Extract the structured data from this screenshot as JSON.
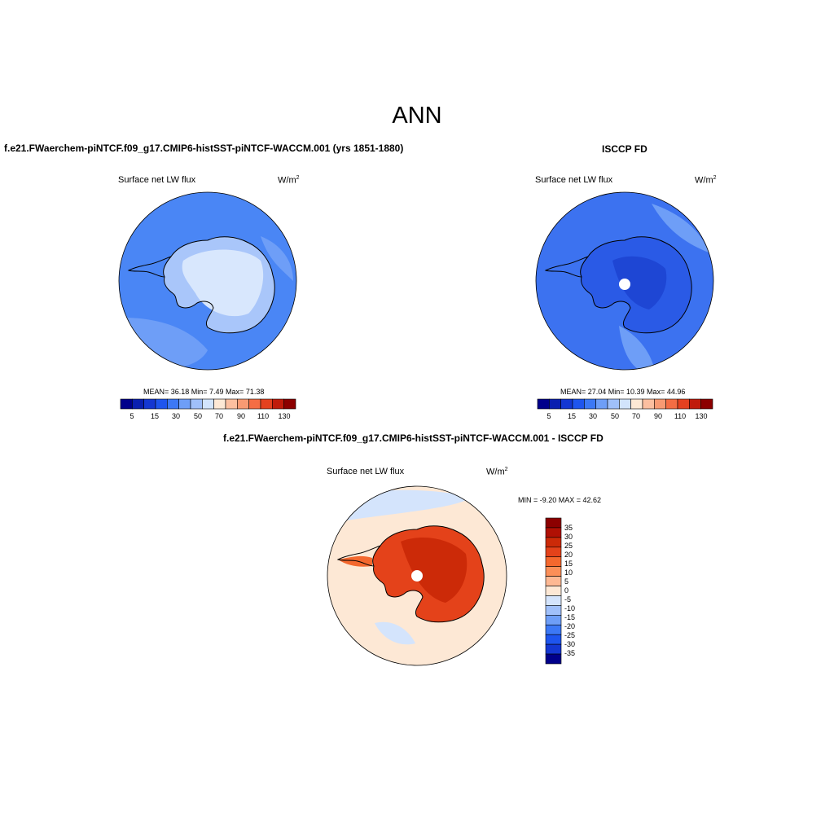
{
  "title": "ANN",
  "panels": [
    {
      "case_name": "f.e21.FWaerchem-piNTCF.f09_g17.CMIP6-histSST-piNTCF-WACCM.001 (yrs 1851-1880)",
      "variable": "Surface net LW flux",
      "units_base": "W/m",
      "units_exp": "2",
      "stats": "MEAN=  36.18  Min=   7.49  Max=  71.38",
      "colorbar_ticks": [
        "5",
        "15",
        "30",
        "50",
        "70",
        "90",
        "110",
        "130"
      ]
    },
    {
      "case_name": "ISCCP FD",
      "variable": "Surface net LW flux",
      "units_base": "W/m",
      "units_exp": "2",
      "stats": "MEAN=  27.04  Min=  10.39  Max=  44.96",
      "colorbar_ticks": [
        "5",
        "15",
        "30",
        "50",
        "70",
        "90",
        "110",
        "130"
      ]
    },
    {
      "case_name": "f.e21.FWaerchem-piNTCF.f09_g17.CMIP6-histSST-piNTCF-WACCM.001 - ISCCP FD",
      "variable": "Surface net LW flux",
      "units_base": "W/m",
      "units_exp": "2",
      "stats": "MIN =  -9.20 MAX =  42.62",
      "legend_labels": [
        "35",
        "30",
        "25",
        "20",
        "15",
        "10",
        "5",
        "0",
        "-5",
        "-10",
        "-15",
        "-20",
        "-25",
        "-30",
        "-35"
      ]
    }
  ],
  "colors": {
    "abs_colorbar": [
      "#00008b",
      "#0a1fb0",
      "#1437d2",
      "#1e55ee",
      "#3c78f5",
      "#6e9ef7",
      "#a0c0fa",
      "#d2e4fc",
      "#fde8d5",
      "#fcbfa0",
      "#f89a73",
      "#f46d44",
      "#e4411f",
      "#c01b0b",
      "#8c0000"
    ],
    "diff_legend": [
      "#8c0000",
      "#b01004",
      "#cc2a08",
      "#e4421a",
      "#f4682e",
      "#fb8f58",
      "#fdb893",
      "#fde8d5",
      "#d4e4fc",
      "#a0c0fa",
      "#6e9ef7",
      "#3c78f5",
      "#1e55ee",
      "#1437d2",
      "#00008b"
    ]
  }
}
